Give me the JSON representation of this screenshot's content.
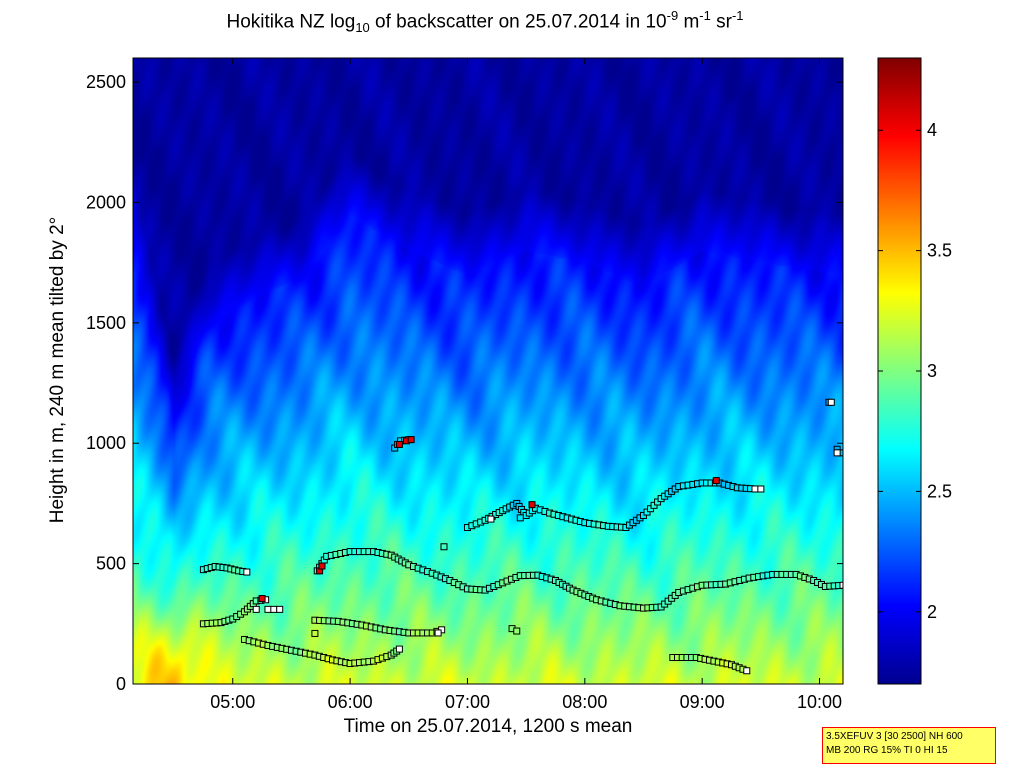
{
  "title": {
    "prefix": "Hokitika NZ log",
    "sub": "10",
    "middle": " of backscatter on 25.07.2014 in 10",
    "sup1": "-9",
    "unit1": " m",
    "sup2": "-1",
    "unit2": " sr",
    "sup3": "-1"
  },
  "info_box": {
    "line1": "3.5XEFUV 3 [30 2500] NH 600",
    "line2": "MB 200 RG 15% TI 0 HI 15"
  },
  "colors": {
    "cmap": [
      "#00008f",
      "#0000ff",
      "#0080ff",
      "#00ffff",
      "#80ff80",
      "#ffff00",
      "#ff8000",
      "#ff0000",
      "#800000"
    ],
    "marker_edge": "#000000"
  },
  "chart_data": {
    "type": "heatmap",
    "title": "Hokitika NZ log10 of backscatter on 25.07.2014 in 10^-9 m^-1 sr^-1",
    "xlabel": "Time on 25.07.2014, 1200 s mean",
    "ylabel": "Height in m, 240 m mean tilted by 2°",
    "x_unit": "hours",
    "xlim": [
      4.15,
      10.2
    ],
    "ylim": [
      0,
      2600
    ],
    "x_ticks": [
      5,
      6,
      7,
      8,
      9,
      10
    ],
    "x_tick_labels": [
      "05:00",
      "06:00",
      "07:00",
      "08:00",
      "09:00",
      "10:00"
    ],
    "y_ticks": [
      0,
      500,
      1000,
      1500,
      2000,
      2500
    ],
    "y_tick_labels": [
      "0",
      "500",
      "1000",
      "1500",
      "2000",
      "2500"
    ],
    "colorbar": {
      "range": [
        1.7,
        4.3
      ],
      "ticks": [
        2,
        2.5,
        3,
        3.5,
        4
      ],
      "tick_labels": [
        "2",
        "2.5",
        "3",
        "3.5",
        "4"
      ]
    },
    "field_model": {
      "description": "log10 backscatter vs height: ~3.2 near ground, decreasing with height to ~1.75 above the aerosol layer",
      "surface_value": 3.2,
      "top_value": 1.75,
      "hotspot": {
        "time": 4.5,
        "height": 100,
        "value": 3.5
      },
      "layer_top_profile": [
        [
          4.15,
          1850
        ],
        [
          4.5,
          1100
        ],
        [
          4.8,
          1500
        ],
        [
          5.2,
          1600
        ],
        [
          5.6,
          1700
        ],
        [
          6.0,
          1950
        ],
        [
          6.5,
          1800
        ],
        [
          7.0,
          1700
        ],
        [
          7.5,
          1800
        ],
        [
          8.0,
          1750
        ],
        [
          8.5,
          1650
        ],
        [
          9.0,
          1800
        ],
        [
          9.5,
          1750
        ],
        [
          10.2,
          1700
        ]
      ]
    },
    "series": [
      {
        "name": "cloud base / layer 1",
        "points": [
          [
            4.75,
            250
          ],
          [
            4.9,
            255
          ],
          [
            5.0,
            270
          ],
          [
            5.1,
            300
          ],
          [
            5.2,
            345
          ],
          [
            5.28,
            350
          ]
        ]
      },
      {
        "name": "layer 4.7-5.1",
        "points": [
          [
            4.75,
            475
          ],
          [
            4.85,
            488
          ],
          [
            4.95,
            482
          ],
          [
            5.05,
            470
          ],
          [
            5.12,
            465
          ]
        ]
      },
      {
        "name": "layer 5.1-6.5",
        "points": [
          [
            5.1,
            185
          ],
          [
            5.3,
            160
          ],
          [
            5.5,
            140
          ],
          [
            5.7,
            120
          ],
          [
            5.85,
            100
          ],
          [
            6.0,
            85
          ],
          [
            6.2,
            95
          ],
          [
            6.35,
            120
          ],
          [
            6.42,
            145
          ]
        ]
      },
      {
        "name": "layer 5.7-6.8",
        "points": [
          [
            5.7,
            265
          ],
          [
            5.9,
            260
          ],
          [
            6.1,
            245
          ],
          [
            6.3,
            225
          ],
          [
            6.5,
            212
          ],
          [
            6.7,
            212
          ],
          [
            6.78,
            225
          ]
        ]
      },
      {
        "name": "main layer",
        "points": [
          [
            5.72,
            470
          ],
          [
            5.8,
            530
          ],
          [
            6.0,
            550
          ],
          [
            6.2,
            550
          ],
          [
            6.35,
            535
          ],
          [
            6.5,
            495
          ],
          [
            6.7,
            460
          ],
          [
            6.85,
            430
          ],
          [
            7.0,
            395
          ],
          [
            7.15,
            390
          ],
          [
            7.3,
            420
          ],
          [
            7.45,
            450
          ],
          [
            7.6,
            452
          ],
          [
            7.75,
            430
          ],
          [
            7.9,
            390
          ],
          [
            8.1,
            350
          ],
          [
            8.3,
            325
          ],
          [
            8.5,
            315
          ],
          [
            8.65,
            320
          ],
          [
            8.8,
            380
          ],
          [
            9.0,
            410
          ],
          [
            9.2,
            415
          ],
          [
            9.4,
            440
          ],
          [
            9.6,
            455
          ],
          [
            9.8,
            455
          ],
          [
            9.95,
            430
          ],
          [
            10.05,
            405
          ],
          [
            10.2,
            410
          ]
        ]
      },
      {
        "name": "upper layer",
        "points": [
          [
            7.0,
            650
          ],
          [
            7.15,
            680
          ],
          [
            7.3,
            720
          ],
          [
            7.42,
            750
          ],
          [
            7.5,
            700
          ],
          [
            7.58,
            730
          ],
          [
            7.7,
            710
          ],
          [
            7.85,
            690
          ],
          [
            8.0,
            670
          ],
          [
            8.2,
            655
          ],
          [
            8.35,
            650
          ],
          [
            8.5,
            700
          ],
          [
            8.65,
            770
          ],
          [
            8.8,
            820
          ],
          [
            9.0,
            835
          ],
          [
            9.15,
            835
          ],
          [
            9.3,
            815
          ],
          [
            9.45,
            810
          ]
        ]
      },
      {
        "name": "elevated layer",
        "points": [
          [
            6.38,
            980
          ],
          [
            6.43,
            1010
          ],
          [
            6.5,
            1015
          ]
        ]
      },
      {
        "name": "low layer",
        "points": [
          [
            8.75,
            110
          ],
          [
            8.95,
            110
          ],
          [
            9.1,
            95
          ],
          [
            9.25,
            80
          ],
          [
            9.38,
            55
          ]
        ]
      }
    ],
    "isolated_points": [
      [
        6.8,
        570
      ],
      [
        7.38,
        230
      ],
      [
        7.42,
        220
      ],
      [
        10.08,
        1170
      ],
      [
        10.15,
        975
      ],
      [
        10.18,
        960
      ],
      [
        5.7,
        210
      ],
      [
        7.45,
        690
      ]
    ],
    "red_points": [
      [
        6.42,
        995
      ],
      [
        6.48,
        1010
      ],
      [
        6.52,
        1015
      ],
      [
        5.25,
        355
      ],
      [
        5.74,
        470
      ],
      [
        5.76,
        490
      ],
      [
        9.12,
        845
      ],
      [
        7.55,
        745
      ]
    ],
    "white_points": [
      [
        5.3,
        310
      ],
      [
        5.35,
        310
      ],
      [
        5.4,
        310
      ],
      [
        5.2,
        310
      ],
      [
        9.5,
        810
      ],
      [
        10.15,
        960
      ],
      [
        10.1,
        1170
      ],
      [
        6.75,
        212
      ],
      [
        7.2,
        685
      ]
    ]
  }
}
